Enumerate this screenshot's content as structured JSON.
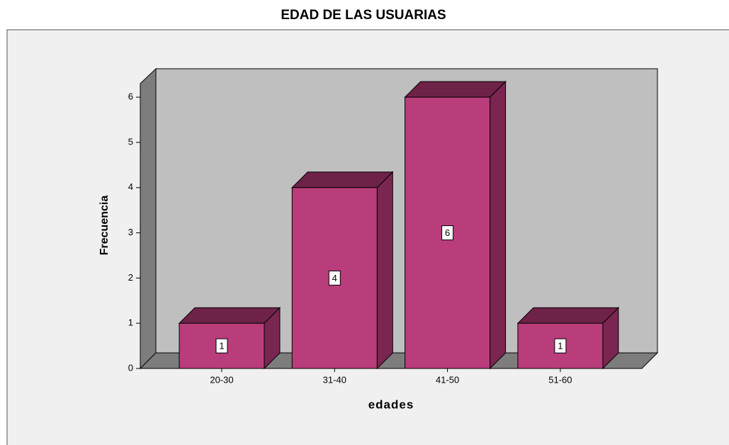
{
  "chart_data": {
    "type": "bar3d",
    "title": "EDAD DE LAS USUARIAS",
    "categories": [
      "20-30",
      "31-40",
      "41-50",
      "51-60"
    ],
    "values": [
      1,
      4,
      6,
      1
    ],
    "color": "#b93c7b",
    "x_label": "edades",
    "y_label": "Frecuencia",
    "ylim": [
      0,
      6.3
    ],
    "yticks": [
      0,
      1,
      2,
      3,
      4,
      5,
      6
    ],
    "grid": false
  }
}
